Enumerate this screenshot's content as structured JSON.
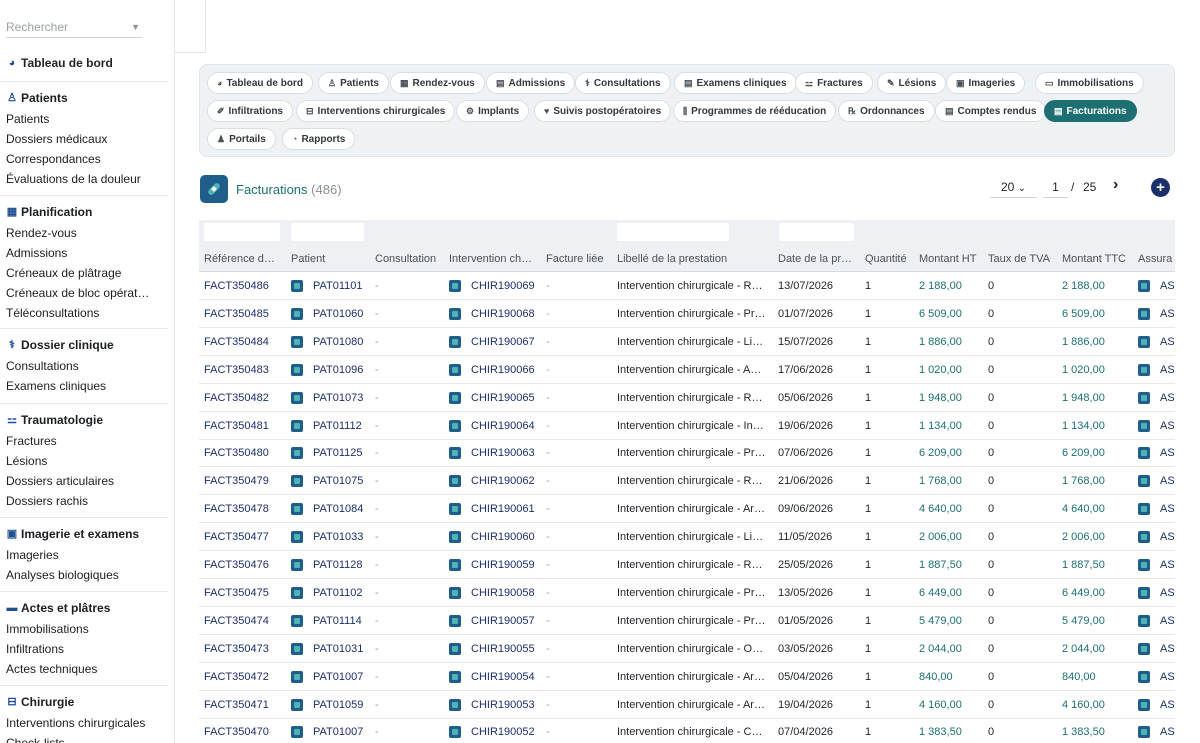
{
  "sidebar": {
    "search_placeholder": "Rechercher",
    "dashboard": "Tableau de bord",
    "groups": [
      {
        "title": "Patients",
        "icon": "patient-icon",
        "items": [
          "Patients",
          "Dossiers médicaux",
          "Correspondances",
          "Évaluations de la douleur"
        ]
      },
      {
        "title": "Planification",
        "icon": "calendar-icon",
        "items": [
          "Rendez-vous",
          "Admissions",
          "Créneaux de plâtrage",
          "Créneaux de bloc opérat…",
          "Téléconsultations"
        ]
      },
      {
        "title": "Dossier clinique",
        "icon": "stethoscope-icon",
        "items": [
          "Consultations",
          "Examens cliniques"
        ]
      },
      {
        "title": "Traumatologie",
        "icon": "bone-icon",
        "items": [
          "Fractures",
          "Lésions",
          "Dossiers articulaires",
          "Dossiers rachis"
        ]
      },
      {
        "title": "Imagerie et examens",
        "icon": "xray-icon",
        "items": [
          "Imageries",
          "Analyses biologiques"
        ]
      },
      {
        "title": "Actes et plâtres",
        "icon": "bandage-icon",
        "items": [
          "Immobilisations",
          "Infiltrations",
          "Actes techniques"
        ]
      },
      {
        "title": "Chirurgie",
        "icon": "bed-icon",
        "items": [
          "Interventions chirurgicales",
          "Check-lists"
        ]
      }
    ]
  },
  "tabs": [
    {
      "label": "Tableau de bord",
      "icon": "dashboard-icon"
    },
    {
      "label": "Patients",
      "icon": "patient-icon"
    },
    {
      "label": "Rendez-vous",
      "icon": "calendar-icon"
    },
    {
      "label": "Admissions",
      "icon": "clipboard-icon"
    },
    {
      "label": "Consultations",
      "icon": "stethoscope-icon"
    },
    {
      "label": "Examens cliniques",
      "icon": "clipboard-icon"
    },
    {
      "label": "Fractures",
      "icon": "bone-icon"
    },
    {
      "label": "Lésions",
      "icon": "bandage-icon"
    },
    {
      "label": "Imageries",
      "icon": "xray-icon"
    },
    {
      "label": "Immobilisations",
      "icon": "cast-icon"
    },
    {
      "label": "Infiltrations",
      "icon": "syringe-icon"
    },
    {
      "label": "Interventions chirurgicales",
      "icon": "bed-icon"
    },
    {
      "label": "Implants",
      "icon": "gears-icon"
    },
    {
      "label": "Suivis postopératoires",
      "icon": "heart-icon"
    },
    {
      "label": "Programmes de rééducation",
      "icon": "dumbbell-icon"
    },
    {
      "label": "Ordonnances",
      "icon": "prescription-icon"
    },
    {
      "label": "Comptes rendus",
      "icon": "document-icon"
    },
    {
      "label": "Facturations",
      "icon": "invoice-icon",
      "active": true
    },
    {
      "label": "Portails",
      "icon": "users-icon"
    },
    {
      "label": "Rapports",
      "icon": "chart-pie-icon"
    }
  ],
  "header": {
    "title": "Facturations",
    "count": "(486)",
    "page_size": "20",
    "current_page": "1",
    "page_sep": "/",
    "total_pages": "25",
    "next": "›",
    "add": "+"
  },
  "columns": [
    "Référence d…",
    "Patient",
    "Consultation",
    "Intervention ch…",
    "Facture liée",
    "Libellé de la prestation",
    "Date de la pr…",
    "Quantité",
    "Montant HT",
    "Taux de TVA",
    "Montant TTC",
    "Assura"
  ],
  "rows": [
    {
      "ref": "FACT350486",
      "patient": "PAT01101",
      "consultation": "-",
      "intervention": "CHIR190069",
      "facture": "-",
      "libelle": "Intervention chirurgicale - R…",
      "date": "13/07/2026",
      "qte": "1",
      "ht": "2 188,00",
      "tva": "0",
      "ttc": "2 188,00",
      "assur": "AS"
    },
    {
      "ref": "FACT350485",
      "patient": "PAT01060",
      "consultation": "-",
      "intervention": "CHIR190068",
      "facture": "-",
      "libelle": "Intervention chirurgicale - Pr…",
      "date": "01/07/2026",
      "qte": "1",
      "ht": "6 509,00",
      "tva": "0",
      "ttc": "6 509,00",
      "assur": "AS"
    },
    {
      "ref": "FACT350484",
      "patient": "PAT01080",
      "consultation": "-",
      "intervention": "CHIR190067",
      "facture": "-",
      "libelle": "Intervention chirurgicale - Li…",
      "date": "15/07/2026",
      "qte": "1",
      "ht": "1 886,00",
      "tva": "0",
      "ttc": "1 886,00",
      "assur": "AS"
    },
    {
      "ref": "FACT350483",
      "patient": "PAT01096",
      "consultation": "-",
      "intervention": "CHIR190066",
      "facture": "-",
      "libelle": "Intervention chirurgicale - A…",
      "date": "17/06/2026",
      "qte": "1",
      "ht": "1 020,00",
      "tva": "0",
      "ttc": "1 020,00",
      "assur": "AS"
    },
    {
      "ref": "FACT350482",
      "patient": "PAT01073",
      "consultation": "-",
      "intervention": "CHIR190065",
      "facture": "-",
      "libelle": "Intervention chirurgicale - R…",
      "date": "05/06/2026",
      "qte": "1",
      "ht": "1 948,00",
      "tva": "0",
      "ttc": "1 948,00",
      "assur": "AS"
    },
    {
      "ref": "FACT350481",
      "patient": "PAT01112",
      "consultation": "-",
      "intervention": "CHIR190064",
      "facture": "-",
      "libelle": "Intervention chirurgicale - In…",
      "date": "19/06/2026",
      "qte": "1",
      "ht": "1 134,00",
      "tva": "0",
      "ttc": "1 134,00",
      "assur": "AS"
    },
    {
      "ref": "FACT350480",
      "patient": "PAT01125",
      "consultation": "-",
      "intervention": "CHIR190063",
      "facture": "-",
      "libelle": "Intervention chirurgicale - Pr…",
      "date": "07/06/2026",
      "qte": "1",
      "ht": "6 209,00",
      "tva": "0",
      "ttc": "6 209,00",
      "assur": "AS"
    },
    {
      "ref": "FACT350479",
      "patient": "PAT01075",
      "consultation": "-",
      "intervention": "CHIR190062",
      "facture": "-",
      "libelle": "Intervention chirurgicale - R…",
      "date": "21/06/2026",
      "qte": "1",
      "ht": "1 768,00",
      "tva": "0",
      "ttc": "1 768,00",
      "assur": "AS"
    },
    {
      "ref": "FACT350478",
      "patient": "PAT01084",
      "consultation": "-",
      "intervention": "CHIR190061",
      "facture": "-",
      "libelle": "Intervention chirurgicale - Ar…",
      "date": "09/06/2026",
      "qte": "1",
      "ht": "4 640,00",
      "tva": "0",
      "ttc": "4 640,00",
      "assur": "AS"
    },
    {
      "ref": "FACT350477",
      "patient": "PAT01033",
      "consultation": "-",
      "intervention": "CHIR190060",
      "facture": "-",
      "libelle": "Intervention chirurgicale - Li…",
      "date": "11/05/2026",
      "qte": "1",
      "ht": "2 006,00",
      "tva": "0",
      "ttc": "2 006,00",
      "assur": "AS"
    },
    {
      "ref": "FACT350476",
      "patient": "PAT01128",
      "consultation": "-",
      "intervention": "CHIR190059",
      "facture": "-",
      "libelle": "Intervention chirurgicale - R…",
      "date": "25/05/2026",
      "qte": "1",
      "ht": "1 887,50",
      "tva": "0",
      "ttc": "1 887,50",
      "assur": "AS"
    },
    {
      "ref": "FACT350475",
      "patient": "PAT01102",
      "consultation": "-",
      "intervention": "CHIR190058",
      "facture": "-",
      "libelle": "Intervention chirurgicale - Pr…",
      "date": "13/05/2026",
      "qte": "1",
      "ht": "6 449,00",
      "tva": "0",
      "ttc": "6 449,00",
      "assur": "AS"
    },
    {
      "ref": "FACT350474",
      "patient": "PAT01114",
      "consultation": "-",
      "intervention": "CHIR190057",
      "facture": "-",
      "libelle": "Intervention chirurgicale - Pr…",
      "date": "01/05/2026",
      "qte": "1",
      "ht": "5 479,00",
      "tva": "0",
      "ttc": "5 479,00",
      "assur": "AS"
    },
    {
      "ref": "FACT350473",
      "patient": "PAT01031",
      "consultation": "-",
      "intervention": "CHIR190055",
      "facture": "-",
      "libelle": "Intervention chirurgicale - O…",
      "date": "03/05/2026",
      "qte": "1",
      "ht": "2 044,00",
      "tva": "0",
      "ttc": "2 044,00",
      "assur": "AS"
    },
    {
      "ref": "FACT350472",
      "patient": "PAT01007",
      "consultation": "-",
      "intervention": "CHIR190054",
      "facture": "-",
      "libelle": "Intervention chirurgicale - Ar…",
      "date": "05/04/2026",
      "qte": "1",
      "ht": "840,00",
      "tva": "0",
      "ttc": "840,00",
      "assur": "AS"
    },
    {
      "ref": "FACT350471",
      "patient": "PAT01059",
      "consultation": "-",
      "intervention": "CHIR190053",
      "facture": "-",
      "libelle": "Intervention chirurgicale - Ar…",
      "date": "19/04/2026",
      "qte": "1",
      "ht": "4 160,00",
      "tva": "0",
      "ttc": "4 160,00",
      "assur": "AS"
    },
    {
      "ref": "FACT350470",
      "patient": "PAT01007",
      "consultation": "-",
      "intervention": "CHIR190052",
      "facture": "-",
      "libelle": "Intervention chirurgicale - C…",
      "date": "07/04/2026",
      "qte": "1",
      "ht": "1 383,50",
      "tva": "0",
      "ttc": "1 383,50",
      "assur": "AS"
    }
  ],
  "colors": {
    "accent": "#1d6f71",
    "link": "#1b2f6b",
    "nav_icon": "#1d4f91"
  }
}
